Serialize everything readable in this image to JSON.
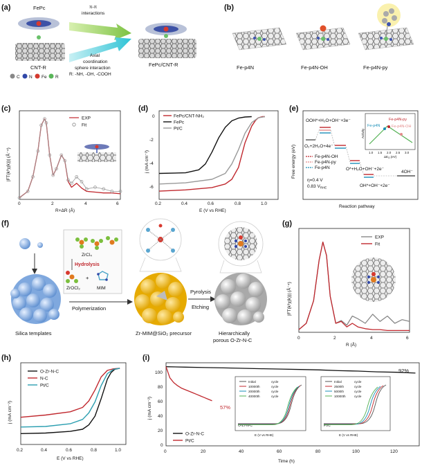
{
  "panels": {
    "a": {
      "label": "(a)",
      "fepc": "FePc",
      "interaction1": "π-π",
      "interaction1b": "interactions",
      "interaction2": "Axial",
      "interaction2b": "coordination",
      "interaction2c": "sphere interaction",
      "interaction2d": "R: -NH, -OH, -COOH",
      "cnt": "CNT-R",
      "product": "FePc/CNT-R",
      "legend": [
        "C",
        "N",
        "Fe",
        "R"
      ]
    },
    "b": {
      "label": "(b)",
      "names": [
        "Fe-p4N",
        "Fe-p4N-OH",
        "Fe-p4N-py"
      ]
    },
    "c": {
      "label": "(c)",
      "legend": [
        "EXP",
        "Fit"
      ],
      "xlabel": "R+ΔR (Å)",
      "ylabel": "|FT(k³χ(k))| (Å⁻⁴)",
      "xticks": [
        "0",
        "2",
        "4",
        "6"
      ]
    },
    "d": {
      "label": "(d)",
      "legend": [
        "FePc/CNT-NH₂",
        "FePc",
        "Pt/C"
      ],
      "xlabel": "E (V vs RHE)",
      "ylabel": "j (mA cm⁻²)",
      "xticks": [
        "0.2",
        "0.4",
        "0.6",
        "0.8",
        "1.0"
      ],
      "yticks": [
        "0",
        "-2",
        "-4",
        "-6"
      ]
    },
    "e": {
      "label": "(e)",
      "xlabel": "Reaction pathway",
      "ylabel": "Free energy (eV)",
      "ann1": "OOH*+H₂O+OH⁻+3e⁻",
      "ann2": "O₂+2H₂O+4e⁻",
      "ann3": "O*+H₂O+OH⁻+2e⁻",
      "ann4": "OH*+OH⁻+2e⁻",
      "ann5": "4OH⁻",
      "ann6": "η=0.4 V",
      "ann7": "0.83 V",
      "ann7sub": "RHE",
      "legend": [
        "Fe-p4N-OH",
        "Fe-p4N-py",
        "Fe-p4N"
      ],
      "inset_legend": [
        "Fe-p4N-py",
        "Fe-p4N",
        "Fe-p4N-OH"
      ],
      "inset_ylabel": "Activity",
      "inset_xlabel": "ΔE",
      "inset_xlabel_sub": "O",
      "inset_xlabel_unit": "(eV)",
      "inset_xticks": [
        "1.0",
        "1.5",
        "2.0",
        "2.5",
        "3.0"
      ]
    },
    "f": {
      "label": "(f)",
      "zrcl": "ZrCl₄",
      "hydrolysis": "Hydrolysis",
      "zrocl": "ZrOCl₂",
      "plus": "+",
      "mim": "MIM",
      "polymerization": "Polymerization",
      "pyrolysis": "Pyrolysis",
      "etching": "Etching",
      "silica": "Silica templates",
      "precursor": "Zr-MIM@SiO₂ precursor",
      "product1": "Hierarchically",
      "product2": "porous O-Zr-N-C"
    },
    "g": {
      "label": "(g)",
      "legend": [
        "EXP",
        "Fit"
      ],
      "xlabel": "R (Å)",
      "ylabel": "|FT(k³χ(k))| (Å⁻⁴)",
      "xticks": [
        "0",
        "2",
        "4",
        "6"
      ]
    },
    "h": {
      "label": "(h)",
      "legend": [
        "O-Zr-N-C",
        "N-C",
        "Pt/C"
      ],
      "xlabel": "E (V vs RHE)",
      "ylabel": "j (mA cm⁻²)",
      "xticks": [
        "0.2",
        "0.4",
        "0.6",
        "0.8",
        "1.0"
      ]
    },
    "i": {
      "label": "(i)",
      "legend": [
        "O-Zr-N-C",
        "Pt/C"
      ],
      "xlabel": "Time (h)",
      "ylabel": "j (mA cm⁻²)",
      "xticks": [
        "0",
        "20",
        "40",
        "60",
        "80",
        "100",
        "120"
      ],
      "yticks": [
        "100",
        "80",
        "60",
        "40",
        "20",
        "0"
      ],
      "ann_92": "92%",
      "ann_57": "57%",
      "inset1_legend": [
        "Initial",
        "10000th",
        "20000th",
        "40000th"
      ],
      "inset1_suffix": "cycle",
      "inset1_title": "O-Zr-N-C",
      "inset2_legend": [
        "Initial",
        "2500th",
        "5000th",
        "10000th"
      ],
      "inset2_suffix": "cycle",
      "inset2_title": "Pt/C",
      "inset_xlabel": "E (V vs RHE)",
      "inset_ylabel": "j (mA cm⁻²)",
      "inset_xticks": [
        "0.0",
        "0.2",
        "0.4",
        "0.6",
        "0.8",
        "1.0"
      ]
    }
  },
  "chart_data": [
    {
      "id": "c",
      "type": "line",
      "xlabel": "R+ΔR (Å)",
      "ylabel": "|FT(k³χ(k))| (Å⁻⁴)",
      "xlim": [
        0,
        6
      ],
      "series": [
        {
          "name": "EXP",
          "x": [
            0,
            0.5,
            0.8,
            1.1,
            1.3,
            1.5,
            1.6,
            1.8,
            2.0,
            2.2,
            2.5,
            2.7,
            2.9,
            3.1,
            3.4,
            3.7,
            4.0,
            4.5,
            5.0,
            5.5,
            6.0
          ],
          "y": [
            0.02,
            0.1,
            0.28,
            0.6,
            0.92,
            1.0,
            0.95,
            0.55,
            0.3,
            0.38,
            0.55,
            0.48,
            0.22,
            0.15,
            0.2,
            0.14,
            0.1,
            0.09,
            0.08,
            0.08,
            0.07
          ]
        },
        {
          "name": "Fit",
          "x": [
            0,
            0.5,
            0.8,
            1.1,
            1.3,
            1.5,
            1.6,
            1.8,
            2.0,
            2.2,
            2.5,
            2.7,
            2.9,
            3.1,
            3.4,
            3.7,
            4.0,
            4.5,
            5.0,
            5.5,
            6.0
          ],
          "y": [
            0.02,
            0.1,
            0.28,
            0.6,
            0.92,
            1.0,
            0.95,
            0.55,
            0.3,
            0.38,
            0.55,
            0.48,
            0.24,
            0.2,
            0.28,
            0.22,
            0.13,
            0.15,
            0.13,
            0.1,
            0.1
          ]
        }
      ]
    },
    {
      "id": "d",
      "type": "line",
      "xlabel": "E (V vs RHE)",
      "ylabel": "j (mA cm⁻²)",
      "xlim": [
        0.2,
        1.1
      ],
      "ylim": [
        -7,
        0.5
      ],
      "series": [
        {
          "name": "FePc/CNT-NH₂",
          "x": [
            0.2,
            0.4,
            0.6,
            0.7,
            0.75,
            0.8,
            0.85,
            0.9,
            0.93,
            0.95,
            0.98,
            1.0
          ],
          "y": [
            -6.3,
            -6.2,
            -6.0,
            -5.7,
            -5.3,
            -4.3,
            -2.2,
            -0.8,
            -0.3,
            -0.1,
            0,
            0
          ]
        },
        {
          "name": "FePc",
          "x": [
            0.2,
            0.4,
            0.5,
            0.55,
            0.6,
            0.65,
            0.7,
            0.75,
            0.8,
            0.85,
            0.9
          ],
          "y": [
            -4.8,
            -4.75,
            -4.5,
            -4.0,
            -3.0,
            -1.8,
            -0.9,
            -0.35,
            -0.12,
            -0.03,
            0
          ]
        },
        {
          "name": "Pt/C",
          "x": [
            0.2,
            0.4,
            0.6,
            0.7,
            0.75,
            0.8,
            0.85,
            0.9,
            0.95,
            1.0
          ],
          "y": [
            -5.7,
            -5.6,
            -5.3,
            -4.8,
            -4.0,
            -2.8,
            -1.4,
            -0.5,
            -0.1,
            0
          ]
        }
      ]
    },
    {
      "id": "g",
      "type": "line",
      "xlabel": "R (Å)",
      "ylabel": "|FT(k³χ(k))| (Å⁻⁴)",
      "xlim": [
        0,
        6
      ],
      "series": [
        {
          "name": "EXP",
          "x": [
            0,
            0.4,
            0.8,
            1.1,
            1.3,
            1.5,
            1.7,
            2.0,
            2.3,
            2.6,
            2.9,
            3.2,
            3.6,
            4.0,
            4.4,
            4.8,
            5.2,
            5.6,
            6.0
          ],
          "y": [
            0.03,
            0.1,
            0.35,
            0.8,
            1.0,
            0.85,
            0.4,
            0.1,
            0.13,
            0.08,
            0.18,
            0.15,
            0.1,
            0.2,
            0.12,
            0.18,
            0.1,
            0.14,
            0.12
          ]
        },
        {
          "name": "Fit",
          "x": [
            0,
            0.4,
            0.8,
            1.1,
            1.3,
            1.5,
            1.7,
            2.0,
            2.3,
            2.6,
            2.9,
            3.2,
            3.6,
            4.0,
            4.4,
            4.8,
            5.2,
            5.6,
            6.0
          ],
          "y": [
            0.03,
            0.1,
            0.35,
            0.8,
            1.0,
            0.85,
            0.4,
            0.1,
            0.12,
            0.06,
            0.1,
            0.06,
            0.04,
            0.03,
            0.03,
            0.02,
            0.02,
            0.02,
            0.02
          ]
        }
      ]
    },
    {
      "id": "h",
      "type": "line",
      "xlabel": "E (V vs RHE)",
      "ylabel": "j (mA cm⁻²)",
      "xlim": [
        0.2,
        1.05
      ],
      "ylim": [
        -7,
        0.5
      ],
      "series": [
        {
          "name": "O-Zr-N-C",
          "x": [
            0.2,
            0.4,
            0.6,
            0.7,
            0.75,
            0.8,
            0.85,
            0.9,
            0.93,
            0.96,
            1.0
          ],
          "y": [
            -6.0,
            -5.95,
            -5.8,
            -5.6,
            -5.2,
            -4.4,
            -2.8,
            -1.0,
            -0.4,
            -0.1,
            0
          ]
        },
        {
          "name": "N-C",
          "x": [
            0.2,
            0.4,
            0.6,
            0.7,
            0.75,
            0.8,
            0.85,
            0.9,
            0.95,
            1.0
          ],
          "y": [
            -4.5,
            -4.3,
            -4.0,
            -3.6,
            -3.0,
            -2.0,
            -0.8,
            -0.2,
            -0.05,
            0
          ]
        },
        {
          "name": "Pt/C",
          "x": [
            0.2,
            0.4,
            0.6,
            0.7,
            0.75,
            0.8,
            0.85,
            0.9,
            0.95,
            1.0
          ],
          "y": [
            -5.4,
            -5.35,
            -5.1,
            -4.7,
            -4.1,
            -3.1,
            -1.6,
            -0.5,
            -0.1,
            0
          ]
        }
      ]
    },
    {
      "id": "i",
      "type": "line",
      "xlabel": "Time (h)",
      "ylabel": "j (mA cm⁻²)",
      "xlim": [
        0,
        132
      ],
      "ylim": [
        0,
        105
      ],
      "series": [
        {
          "name": "O-Zr-N-C",
          "x": [
            0,
            10,
            20,
            30,
            40,
            50,
            60,
            70,
            80,
            90,
            100,
            110,
            120,
            130
          ],
          "y": [
            100,
            99.5,
            99,
            98.5,
            98,
            97.5,
            97,
            96.5,
            96,
            95,
            94.5,
            93.5,
            93,
            92
          ]
        },
        {
          "name": "Pt/C",
          "x": [
            0,
            2,
            4,
            6,
            8,
            10,
            12,
            14,
            16,
            18,
            20,
            22,
            24
          ],
          "y": [
            100,
            86,
            80,
            76,
            73,
            71,
            69,
            67,
            65,
            63,
            61,
            59,
            57
          ]
        }
      ]
    }
  ],
  "colors": {
    "red": "#c0272d",
    "black": "#111111",
    "gray": "#999999",
    "teal": "#2a9eb0",
    "gold": "#f1b517",
    "silica": "#8fb8e8"
  }
}
